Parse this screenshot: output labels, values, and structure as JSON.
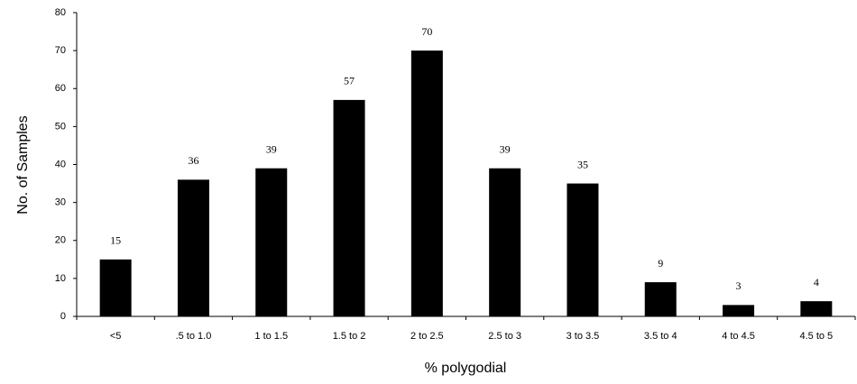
{
  "chart_data": {
    "type": "bar",
    "x_label": "% polygodial",
    "y_label": "No. of Samples",
    "categories": [
      "<5",
      ".5 to 1.0",
      "1 to 1.5",
      "1.5 to 2",
      "2 to 2.5",
      "2.5 to 3",
      "3 to 3.5",
      "3.5 to 4",
      "4 to 4.5",
      "4.5 to 5"
    ],
    "values": [
      15,
      36,
      39,
      57,
      70,
      39,
      35,
      9,
      3,
      4
    ],
    "color": "#000000",
    "ylim": [
      0,
      80
    ],
    "yticks": [
      0,
      10,
      20,
      30,
      40,
      50,
      60,
      70,
      80
    ],
    "grid": false
  }
}
